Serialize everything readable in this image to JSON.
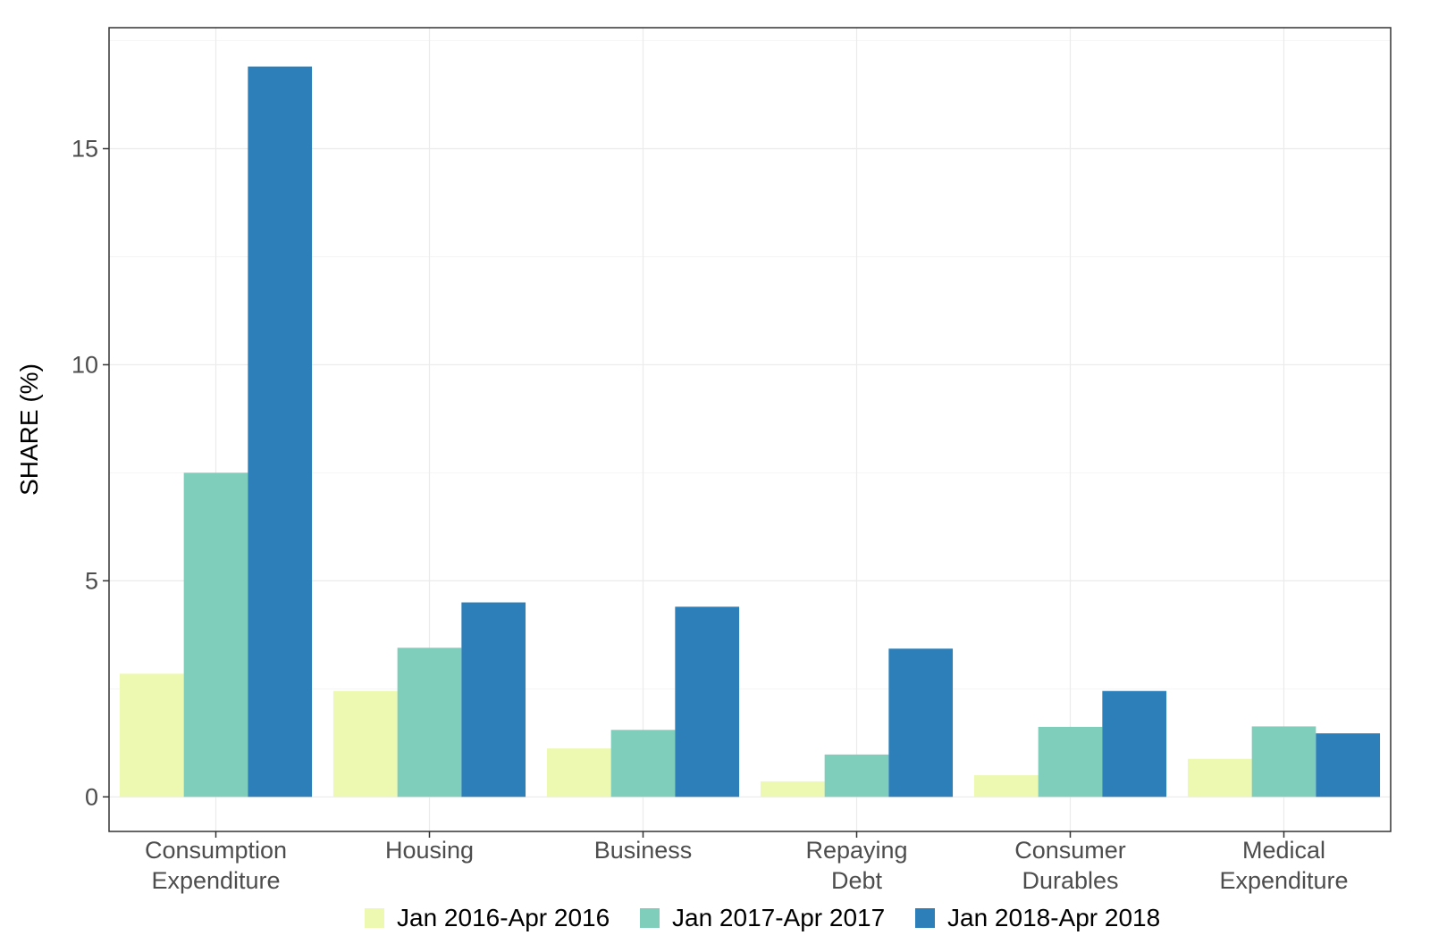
{
  "chart_data": {
    "type": "bar",
    "ylabel": "SHARE (%)",
    "xlabel": "",
    "ylim": [
      -0.8,
      17.8
    ],
    "yticks": [
      0,
      5,
      10,
      15
    ],
    "grid": true,
    "legend_position": "bottom",
    "categories": [
      [
        "Consumption",
        "Expenditure"
      ],
      [
        "Housing"
      ],
      [
        "Business"
      ],
      [
        "Repaying",
        "Debt"
      ],
      [
        "Consumer",
        "Durables"
      ],
      [
        "Medical",
        "Expenditure"
      ]
    ],
    "series": [
      {
        "name": "Jan 2016-Apr 2016",
        "color": "#edf8b1",
        "values": [
          2.85,
          2.45,
          1.12,
          0.36,
          0.5,
          0.88
        ]
      },
      {
        "name": "Jan 2017-Apr 2017",
        "color": "#7fcdbb",
        "values": [
          7.5,
          3.45,
          1.55,
          0.98,
          1.62,
          1.63
        ]
      },
      {
        "name": "Jan 2018-Apr 2018",
        "color": "#2c7fb8",
        "values": [
          16.9,
          4.5,
          4.4,
          3.43,
          2.45,
          1.47
        ]
      }
    ]
  }
}
